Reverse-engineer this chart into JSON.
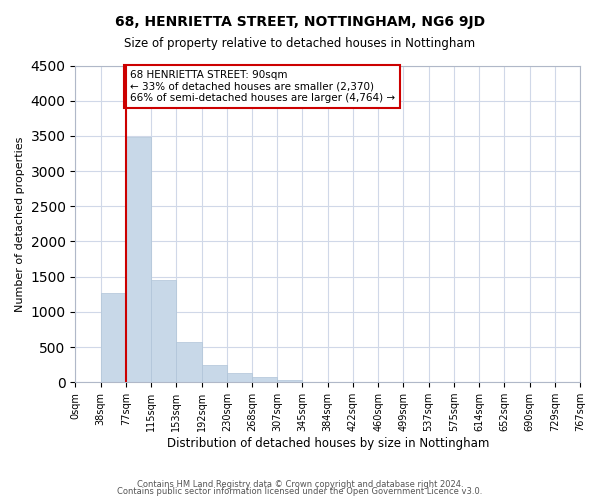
{
  "title": "68, HENRIETTA STREET, NOTTINGHAM, NG6 9JD",
  "subtitle": "Size of property relative to detached houses in Nottingham",
  "xlabel": "Distribution of detached houses by size in Nottingham",
  "ylabel": "Number of detached properties",
  "bar_color": "#c8d8e8",
  "bar_edge_color": "#b0c4d8",
  "grid_color": "#d0d8e8",
  "bin_labels": [
    "0sqm",
    "38sqm",
    "77sqm",
    "115sqm",
    "153sqm",
    "192sqm",
    "230sqm",
    "268sqm",
    "307sqm",
    "345sqm",
    "384sqm",
    "422sqm",
    "460sqm",
    "499sqm",
    "537sqm",
    "575sqm",
    "614sqm",
    "652sqm",
    "690sqm",
    "729sqm",
    "767sqm"
  ],
  "bar_heights": [
    0,
    1270,
    3480,
    1450,
    575,
    245,
    135,
    75,
    30,
    10,
    5,
    2,
    1,
    0,
    0,
    0,
    0,
    0,
    0,
    0
  ],
  "ylim": [
    0,
    4500
  ],
  "yticks": [
    0,
    500,
    1000,
    1500,
    2000,
    2500,
    3000,
    3500,
    4000,
    4500
  ],
  "property_line_x": 2,
  "annotation_text": "68 HENRIETTA STREET: 90sqm\n← 33% of detached houses are smaller (2,370)\n66% of semi-detached houses are larger (4,764) →",
  "annotation_box_color": "#ffffff",
  "annotation_border_color": "#cc0000",
  "property_line_color": "#cc0000",
  "footer_line1": "Contains HM Land Registry data © Crown copyright and database right 2024.",
  "footer_line2": "Contains public sector information licensed under the Open Government Licence v3.0."
}
